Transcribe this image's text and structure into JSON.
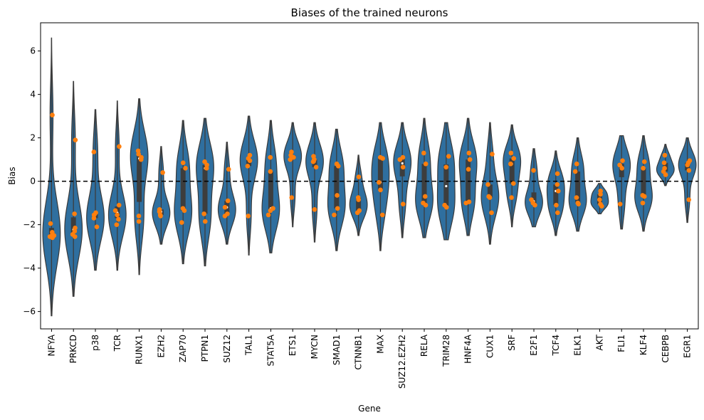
{
  "chart_data": {
    "type": "violin",
    "title": "Biases of the trained neurons",
    "xlabel": "Gene",
    "ylabel": "Bias",
    "ylim": [
      -6.8,
      7.3
    ],
    "yticks": [
      -6,
      -4,
      -2,
      0,
      2,
      4,
      6
    ],
    "reference_line": {
      "y": 0,
      "style": "dashed",
      "color": "#000000"
    },
    "colors": {
      "violin": "#2f6f9f",
      "points": "#ff7f0e",
      "box": "#3d3d3d"
    },
    "categories": [
      "NFYA",
      "PRKCD",
      "p38",
      "TCR",
      "RUNX1",
      "EZH2",
      "ZAP70",
      "PTPN1",
      "SUZ12",
      "TAL1",
      "STAT5A",
      "ETS1",
      "MYCN",
      "SMAD1",
      "CTNNB1",
      "MAX",
      "SUZ12.EZH2",
      "RELA",
      "TRIM28",
      "HNF4A",
      "CUX1",
      "SRF",
      "E2F1",
      "TCF4",
      "ELK1",
      "AKT",
      "FLI1",
      "KLF4",
      "CEBPB",
      "EGR1"
    ],
    "violins": [
      {
        "min": -6.2,
        "max": 6.6
      },
      {
        "min": -5.3,
        "max": 4.6
      },
      {
        "min": -4.1,
        "max": 3.3
      },
      {
        "min": -4.1,
        "max": 3.7
      },
      {
        "min": -4.3,
        "max": 3.8
      },
      {
        "min": -2.9,
        "max": 1.6
      },
      {
        "min": -3.8,
        "max": 2.8
      },
      {
        "min": -3.9,
        "max": 2.9
      },
      {
        "min": -2.9,
        "max": 1.8
      },
      {
        "min": -3.4,
        "max": 3.0
      },
      {
        "min": -3.3,
        "max": 2.8
      },
      {
        "min": -2.1,
        "max": 2.7
      },
      {
        "min": -2.8,
        "max": 2.7
      },
      {
        "min": -3.2,
        "max": 2.4
      },
      {
        "min": -2.5,
        "max": 1.2
      },
      {
        "min": -3.2,
        "max": 2.7
      },
      {
        "min": -2.6,
        "max": 2.7
      },
      {
        "min": -2.6,
        "max": 2.9
      },
      {
        "min": -2.7,
        "max": 2.7
      },
      {
        "min": -2.5,
        "max": 2.9
      },
      {
        "min": -2.9,
        "max": 2.7
      },
      {
        "min": -2.1,
        "max": 2.6
      },
      {
        "min": -2.1,
        "max": 1.5
      },
      {
        "min": -2.5,
        "max": 1.4
      },
      {
        "min": -2.3,
        "max": 2.0
      },
      {
        "min": -1.5,
        "max": -0.1
      },
      {
        "min": -2.2,
        "max": 2.1
      },
      {
        "min": -2.3,
        "max": 2.1
      },
      {
        "min": -0.2,
        "max": 1.7
      },
      {
        "min": -1.9,
        "max": 2.0
      }
    ],
    "series": [
      {
        "values": [
          [
            3.05,
            -1.95,
            -2.35,
            -2.5,
            -2.6,
            -2.45,
            -2.55
          ],
          [
            1.9,
            -1.5,
            -2.15,
            -2.3,
            -2.45,
            -2.55
          ],
          [
            1.35,
            -1.45,
            -1.55,
            -1.7,
            -2.1
          ],
          [
            1.6,
            -1.1,
            -1.35,
            -1.55,
            -1.75,
            -2.0
          ],
          [
            1.4,
            1.25,
            1.1,
            1.0,
            -1.6,
            -1.85
          ],
          [
            0.4,
            -1.3,
            -1.4,
            -1.55,
            -1.6
          ],
          [
            0.85,
            0.6,
            -1.25,
            -1.35,
            -1.9
          ],
          [
            0.9,
            0.75,
            0.6,
            -1.5,
            -1.85
          ],
          [
            0.55,
            -0.9,
            -1.2,
            -1.5,
            -1.6
          ],
          [
            1.2,
            1.05,
            0.95,
            0.7,
            -1.6
          ],
          [
            1.1,
            0.45,
            -1.25,
            -1.35,
            -1.55
          ],
          [
            1.35,
            1.2,
            1.1,
            1.0,
            -0.75
          ],
          [
            1.15,
            1.0,
            0.9,
            0.65,
            -1.3
          ],
          [
            0.8,
            0.7,
            -0.65,
            -1.25,
            -1.55
          ],
          [
            0.2,
            -0.75,
            -0.85,
            -1.35,
            -1.45
          ],
          [
            1.1,
            1.05,
            -0.05,
            -0.4,
            -1.55
          ],
          [
            1.1,
            1.0,
            0.65,
            -1.05
          ],
          [
            1.3,
            0.8,
            -0.7,
            -1.0,
            -1.1
          ],
          [
            1.15,
            0.65,
            -1.1,
            -1.2
          ],
          [
            1.3,
            1.0,
            0.55,
            -0.95,
            -1.0
          ],
          [
            1.25,
            -0.15,
            -0.7,
            -0.75,
            -1.45
          ],
          [
            1.3,
            1.05,
            0.8,
            -0.1,
            -0.75
          ],
          [
            0.5,
            -0.85,
            -1.0,
            -1.1
          ],
          [
            0.35,
            -0.15,
            -0.45,
            -1.1,
            -1.45
          ],
          [
            0.8,
            0.45,
            -0.75,
            -1.0,
            -1.05
          ],
          [
            -0.45,
            -0.6,
            -0.85,
            -1.05,
            -1.15
          ],
          [
            0.95,
            0.75,
            0.6,
            -1.05
          ],
          [
            0.9,
            0.6,
            -0.65,
            -0.7,
            -1.0
          ],
          [
            1.2,
            0.85,
            0.6,
            0.45,
            0.3
          ],
          [
            0.95,
            0.85,
            0.75,
            0.5,
            -0.85
          ]
        ]
      }
    ]
  }
}
